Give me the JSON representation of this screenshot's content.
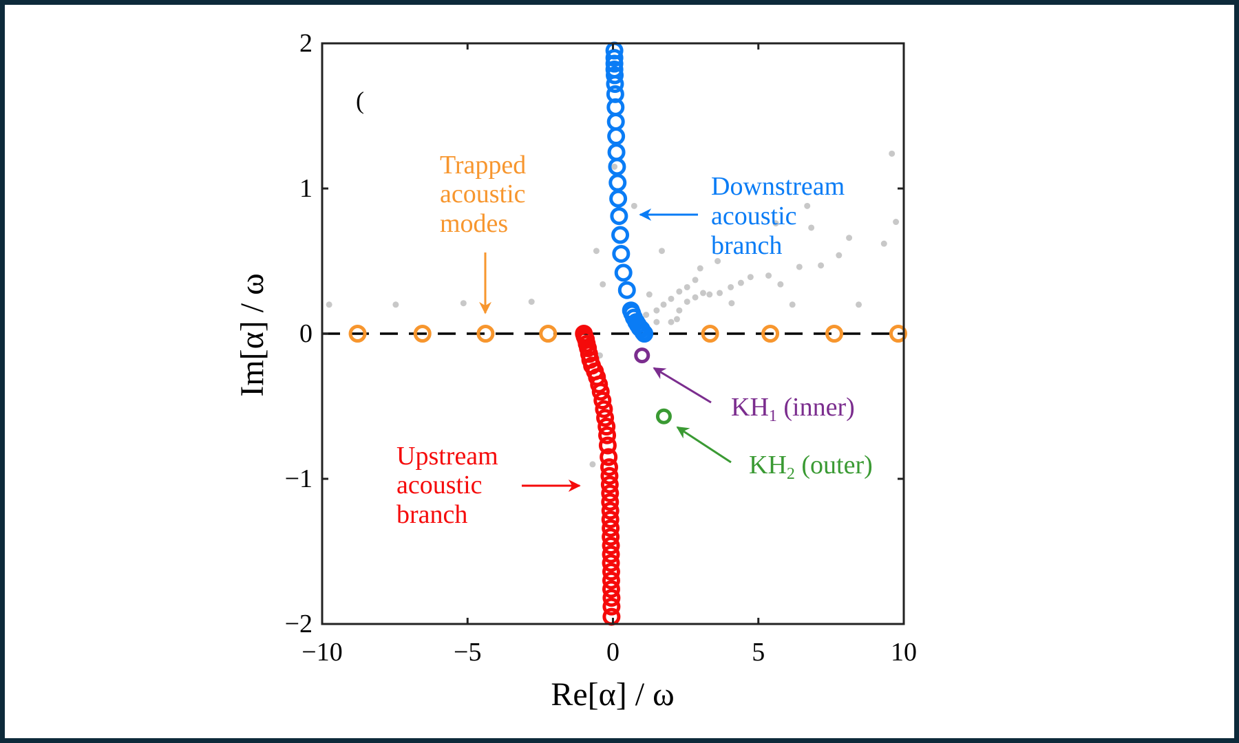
{
  "chart_data": {
    "type": "scatter",
    "title": "",
    "xlabel": "Re[α] / ω",
    "ylabel": "Im[α] / ω",
    "xlim": [
      -10,
      10
    ],
    "ylim": [
      -2,
      2
    ],
    "xticks": [
      "−10",
      "−5",
      "0",
      "5",
      "10"
    ],
    "xtick_values": [
      -10,
      -5,
      0,
      5,
      10
    ],
    "yticks": [
      "−2",
      "−1",
      "0",
      "1",
      "2"
    ],
    "ytick_values": [
      -2,
      -1,
      0,
      1,
      2
    ],
    "grid": false,
    "reference_line": {
      "y": 0,
      "style": "dashed",
      "color": "#000000"
    },
    "panel_label_fragment": "(",
    "series": [
      {
        "key": "background",
        "marker": "dot",
        "color": "#c8c8c8",
        "points": [
          [
            -9.76,
            0.2
          ],
          [
            -7.47,
            0.2
          ],
          [
            -5.14,
            0.21
          ],
          [
            -2.8,
            0.22
          ],
          [
            -0.35,
            0.34
          ],
          [
            -0.57,
            0.57
          ],
          [
            1.68,
            0.57
          ],
          [
            0.73,
            0.88
          ],
          [
            0.05,
            1.15
          ],
          [
            9.59,
            1.24
          ],
          [
            9.73,
            0.77
          ],
          [
            9.32,
            0.62
          ],
          [
            8.45,
            0.2
          ],
          [
            6.17,
            0.2
          ],
          [
            4.08,
            0.21
          ],
          [
            8.12,
            0.66
          ],
          [
            6.68,
            0.88
          ],
          [
            7.77,
            0.54
          ],
          [
            7.15,
            0.47
          ],
          [
            6.41,
            0.46
          ],
          [
            5.76,
            0.34
          ],
          [
            5.35,
            0.4
          ],
          [
            4.73,
            0.39
          ],
          [
            4.4,
            0.35
          ],
          [
            4.05,
            0.32
          ],
          [
            3.67,
            0.28
          ],
          [
            3.32,
            0.27
          ],
          [
            6.82,
            0.73
          ],
          [
            5.6,
            0.76
          ],
          [
            2.28,
            0.29
          ],
          [
            2.55,
            0.32
          ],
          [
            2.83,
            0.37
          ],
          [
            2.0,
            0.24
          ],
          [
            1.74,
            0.2
          ],
          [
            1.5,
            0.16
          ],
          [
            2.28,
            0.16
          ],
          [
            2.0,
            0.08
          ],
          [
            2.83,
            0.25
          ],
          [
            3.1,
            0.28
          ],
          [
            2.55,
            0.22
          ],
          [
            1.25,
            0.27
          ],
          [
            1.14,
            0.13
          ],
          [
            2.2,
            0.1
          ],
          [
            1.5,
            0.08
          ],
          [
            -0.7,
            -0.9
          ],
          [
            -0.45,
            -0.15
          ],
          [
            3.0,
            0.45
          ],
          [
            3.6,
            0.5
          ]
        ]
      },
      {
        "key": "trapped",
        "name": "Trapped acoustic modes",
        "marker": "ring",
        "color": "#f7962e",
        "points": [
          [
            -8.78,
            0
          ],
          [
            -6.55,
            0
          ],
          [
            -4.38,
            0
          ],
          [
            -2.23,
            0
          ],
          [
            3.34,
            0
          ],
          [
            5.41,
            0
          ],
          [
            7.61,
            0
          ],
          [
            9.81,
            0
          ]
        ]
      },
      {
        "key": "downstream",
        "name": "Downstream acoustic branch",
        "marker": "ring",
        "color": "#0a7cf5",
        "points": [
          [
            0.05,
            1.95
          ],
          [
            0.05,
            1.9
          ],
          [
            0.05,
            1.86
          ],
          [
            0.05,
            1.82
          ],
          [
            0.06,
            1.78
          ],
          [
            0.07,
            1.72
          ],
          [
            0.08,
            1.65
          ],
          [
            0.09,
            1.56
          ],
          [
            0.1,
            1.46
          ],
          [
            0.11,
            1.36
          ],
          [
            0.12,
            1.25
          ],
          [
            0.14,
            1.15
          ],
          [
            0.16,
            1.04
          ],
          [
            0.18,
            0.93
          ],
          [
            0.21,
            0.81
          ],
          [
            0.25,
            0.68
          ],
          [
            0.28,
            0.55
          ],
          [
            0.36,
            0.42
          ],
          [
            0.48,
            0.3
          ],
          [
            0.62,
            0.16
          ],
          [
            0.66,
            0.14
          ],
          [
            0.72,
            0.11
          ],
          [
            0.8,
            0.08
          ],
          [
            0.86,
            0.06
          ],
          [
            0.92,
            0.04
          ],
          [
            0.98,
            0.03
          ],
          [
            1.04,
            0.01
          ],
          [
            1.08,
            0.0
          ]
        ]
      },
      {
        "key": "upstream",
        "name": "Upstream acoustic branch",
        "marker": "ring",
        "color": "#f50a0a",
        "points": [
          [
            -1.0,
            0
          ],
          [
            -0.97,
            -0.02
          ],
          [
            -0.93,
            -0.04
          ],
          [
            -0.9,
            -0.07
          ],
          [
            -0.86,
            -0.1
          ],
          [
            -0.82,
            -0.14
          ],
          [
            -0.78,
            -0.18
          ],
          [
            -0.72,
            -0.22
          ],
          [
            -0.62,
            -0.26
          ],
          [
            -0.55,
            -0.3
          ],
          [
            -0.48,
            -0.35
          ],
          [
            -0.42,
            -0.4
          ],
          [
            -0.36,
            -0.46
          ],
          [
            -0.31,
            -0.52
          ],
          [
            -0.27,
            -0.58
          ],
          [
            -0.22,
            -0.64
          ],
          [
            -0.2,
            -0.7
          ],
          [
            -0.18,
            -0.77
          ],
          [
            -0.15,
            -0.85
          ],
          [
            -0.13,
            -0.92
          ],
          [
            -0.12,
            -0.98
          ],
          [
            -0.11,
            -1.04
          ],
          [
            -0.1,
            -1.1
          ],
          [
            -0.1,
            -1.16
          ],
          [
            -0.09,
            -1.22
          ],
          [
            -0.09,
            -1.28
          ],
          [
            -0.08,
            -1.34
          ],
          [
            -0.08,
            -1.4
          ],
          [
            -0.07,
            -1.46
          ],
          [
            -0.07,
            -1.52
          ],
          [
            -0.07,
            -1.58
          ],
          [
            -0.06,
            -1.64
          ],
          [
            -0.06,
            -1.7
          ],
          [
            -0.06,
            -1.76
          ],
          [
            -0.05,
            -1.82
          ],
          [
            -0.05,
            -1.88
          ],
          [
            -0.05,
            -1.95
          ]
        ]
      },
      {
        "key": "kh1",
        "name": "KH1 (inner)",
        "marker": "ring",
        "color": "#7b2d8e",
        "points": [
          [
            1.0,
            -0.15
          ]
        ]
      },
      {
        "key": "kh2",
        "name": "KH2 (outer)",
        "marker": "ring",
        "color": "#3a9a33",
        "points": [
          [
            1.75,
            -0.57
          ]
        ]
      }
    ],
    "annotations": {
      "trapped": {
        "lines": [
          "Trapped",
          "acoustic",
          "modes"
        ],
        "color": "#f7962e"
      },
      "downstream": {
        "lines": [
          "Downstream",
          "acoustic",
          "branch"
        ],
        "color": "#0a7cf5"
      },
      "upstream": {
        "lines": [
          "Upstream",
          "acoustic",
          "branch"
        ],
        "color": "#f50a0a"
      },
      "kh1": {
        "base": "KH",
        "sub": "1",
        "rest": " (inner)",
        "color": "#7b2d8e"
      },
      "kh2": {
        "base": "KH",
        "sub": "2",
        "rest": " (outer)",
        "color": "#3a9a33"
      }
    }
  }
}
